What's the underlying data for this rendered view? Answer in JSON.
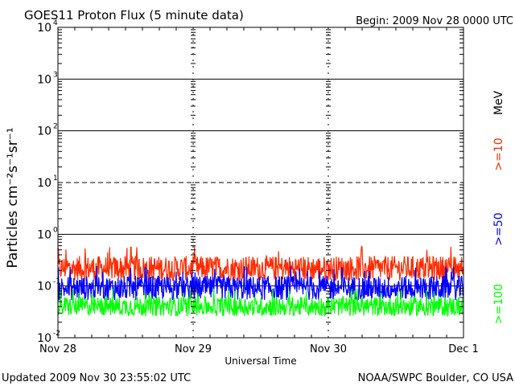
{
  "chart_data": {
    "type": "line",
    "title": "GOES11 Proton Flux (5 minute data)",
    "begin_label": "Begin: 2009 Nov 28 0000 UTC",
    "xlabel": "Universal Time",
    "ylabel": "Particles cm⁻²s⁻¹sr⁻¹",
    "y_scale": "log",
    "ylim": [
      0.01,
      10000
    ],
    "x_range_days": [
      0,
      3
    ],
    "x_ticks": [
      {
        "day": 0,
        "label": "Nov 28"
      },
      {
        "day": 1,
        "label": "Nov 29"
      },
      {
        "day": 2,
        "label": "Nov 30"
      },
      {
        "day": 3,
        "label": "Dec 1"
      }
    ],
    "y_ticks": [
      {
        "base": "10",
        "exp": "-2",
        "value": 0.01
      },
      {
        "base": "10",
        "exp": "-1",
        "value": 0.1
      },
      {
        "base": "10",
        "exp": "0",
        "value": 1
      },
      {
        "base": "10",
        "exp": "1",
        "value": 10
      },
      {
        "base": "10",
        "exp": "2",
        "value": 100
      },
      {
        "base": "10",
        "exp": "3",
        "value": 1000
      },
      {
        "base": "10",
        "exp": "4",
        "value": 10000
      }
    ],
    "dashed_reference_levels": [
      10
    ],
    "grid": "horizontal solid lines at decades, vertical dashed at day boundaries",
    "unit_label": "MeV",
    "series": [
      {
        "name": ">=10",
        "color": "#ff2a00",
        "typical": 0.22,
        "min": 0.12,
        "max": 0.6
      },
      {
        "name": ">=50",
        "color": "#0000ff",
        "typical": 0.09,
        "min": 0.05,
        "max": 0.25
      },
      {
        "name": ">=100",
        "color": "#00ff00",
        "typical": 0.04,
        "min": 0.025,
        "max": 0.09
      }
    ]
  },
  "footer": {
    "updated": "Updated 2009 Nov 30 23:55:02 UTC",
    "source": "NOAA/SWPC Boulder, CO USA"
  }
}
